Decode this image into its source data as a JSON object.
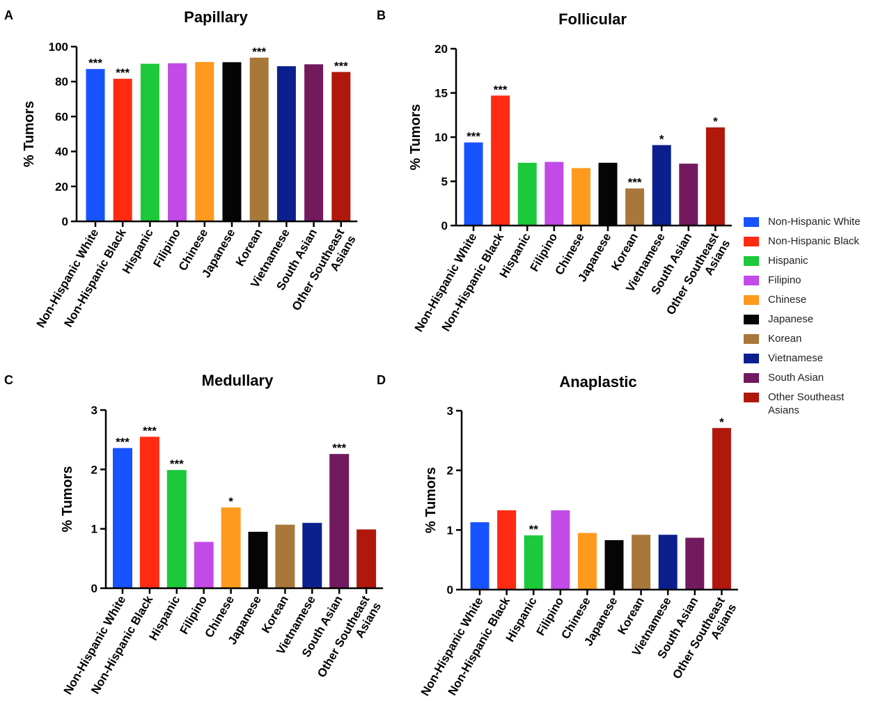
{
  "categories": [
    "Non-Hispanic White",
    "Non-Hispanic Black",
    "Hispanic",
    "Filipino",
    "Chinese",
    "Japanese",
    "Korean",
    "Vietnamese",
    "South Asian",
    "Other Southeast Asians"
  ],
  "colors": [
    "#1753ff",
    "#ff2a12",
    "#1cc93a",
    "#c24be8",
    "#ff9a1f",
    "#050505",
    "#a8773a",
    "#0c1f8f",
    "#731a5f",
    "#b0180c"
  ],
  "legend": {
    "items": [
      "Non-Hispanic White",
      "Non-Hispanic Black",
      "Hispanic",
      "Filipino",
      "Chinese",
      "Japanese",
      "Korean",
      "Vietnamese",
      "South Asian",
      "Other Southeast Asians"
    ]
  },
  "chart_data": [
    {
      "type": "bar",
      "panel": "A",
      "title": "Papillary",
      "ylabel": "% Tumors",
      "ylim": [
        0,
        100
      ],
      "yticks": [
        "0",
        "20",
        "40",
        "60",
        "80",
        "100"
      ],
      "values": [
        87.2,
        81.6,
        90.2,
        90.5,
        91.2,
        91.1,
        93.7,
        88.8,
        89.9,
        85.5
      ],
      "significance": [
        "***",
        "***",
        "",
        "",
        "",
        "",
        "***",
        "",
        "",
        "***"
      ]
    },
    {
      "type": "bar",
      "panel": "B",
      "title": "Follicular",
      "ylabel": "% Tumors",
      "ylim": [
        0,
        20
      ],
      "yticks": [
        "0",
        "5",
        "10",
        "15",
        "20"
      ],
      "values": [
        9.4,
        14.7,
        7.1,
        7.2,
        6.5,
        7.1,
        4.2,
        9.1,
        7.0,
        11.1
      ],
      "significance": [
        "***",
        "***",
        "",
        "",
        "",
        "",
        "***",
        "*",
        "",
        "*"
      ]
    },
    {
      "type": "bar",
      "panel": "C",
      "title": "Medullary",
      "ylabel": "% Tumors",
      "ylim": [
        0,
        3
      ],
      "yticks": [
        "0",
        "1",
        "2",
        "3"
      ],
      "values": [
        2.36,
        2.55,
        1.99,
        0.78,
        1.36,
        0.95,
        1.07,
        1.1,
        2.26,
        0.99
      ],
      "significance": [
        "***",
        "***",
        "***",
        "",
        "*",
        "",
        "",
        "",
        "***",
        ""
      ]
    },
    {
      "type": "bar",
      "panel": "D",
      "title": "Anaplastic",
      "ylabel": "% Tumors",
      "ylim": [
        0,
        3
      ],
      "yticks": [
        "0",
        "1",
        "2",
        "3"
      ],
      "values": [
        1.13,
        1.33,
        0.91,
        1.33,
        0.95,
        0.83,
        0.92,
        0.92,
        0.87,
        2.71
      ],
      "significance": [
        "",
        "",
        "**",
        "",
        "",
        "",
        "",
        "",
        "",
        "*"
      ]
    }
  ]
}
